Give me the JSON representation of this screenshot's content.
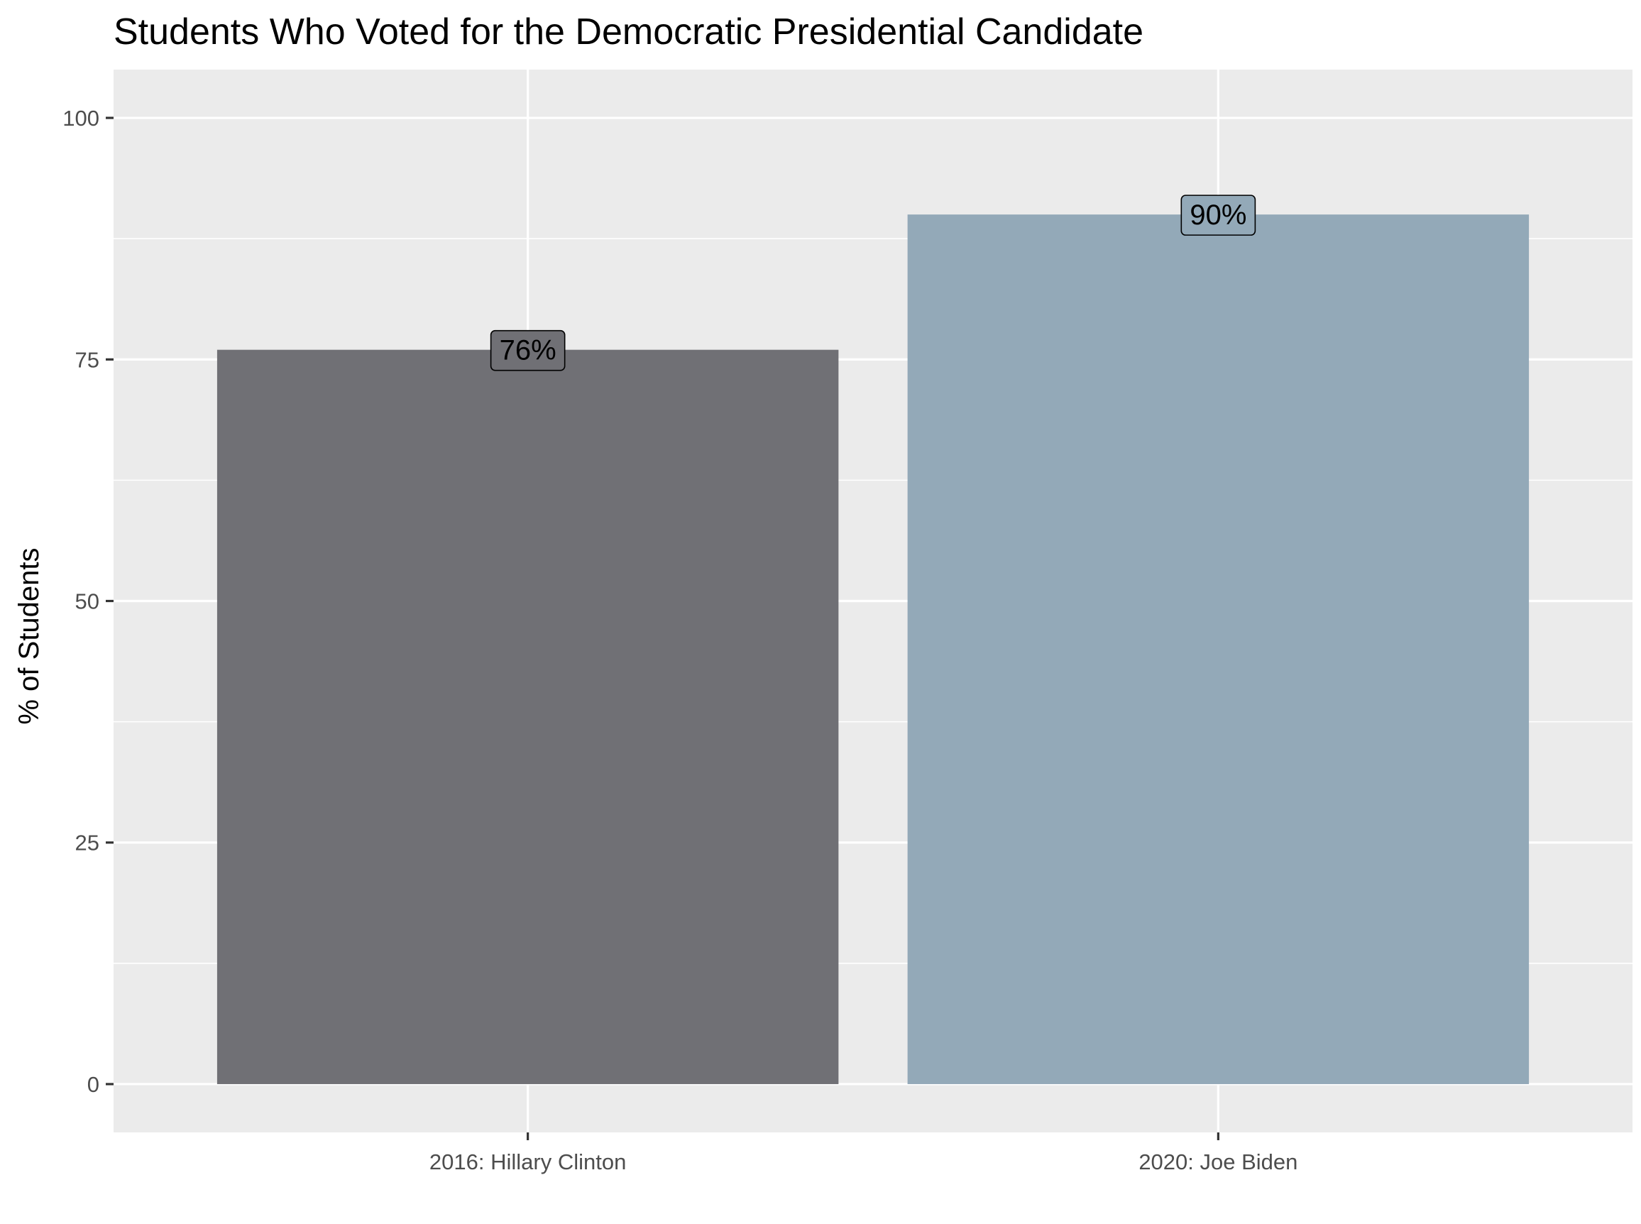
{
  "chart_data": {
    "type": "bar",
    "title": "Students Who Voted for the Democratic Presidential Candidate",
    "xlabel": "",
    "ylabel": "% of Students",
    "categories": [
      "2016: Hillary Clinton",
      "2020: Joe Biden"
    ],
    "values": [
      76,
      90
    ],
    "data_labels": [
      "76%",
      "90%"
    ],
    "colors": [
      "#707075",
      "#93a9b8"
    ],
    "ylim": [
      -5,
      105
    ],
    "yticks": [
      0,
      25,
      50,
      75,
      100
    ],
    "ytick_labels": [
      "0",
      "25",
      "50",
      "75",
      "100"
    ],
    "grid": true,
    "legend": "none",
    "theme": {
      "panel_background": "#ebebeb",
      "grid_color": "#ffffff",
      "tick_color": "#333333",
      "tick_label_color": "#4d4d4d"
    }
  }
}
